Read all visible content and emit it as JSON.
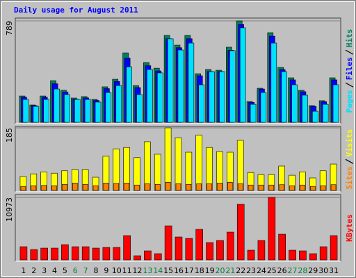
{
  "chart_data": [
    {
      "type": "bar",
      "title": "Daily usage for August 2011",
      "ylim": [
        0,
        789
      ],
      "yticks": [
        789
      ],
      "series": [
        {
          "name": "Hits",
          "color": "#00805c",
          "values": [
            205,
            135,
            205,
            324,
            249,
            189,
            200,
            178,
            276,
            335,
            540,
            286,
            465,
            421,
            676,
            600,
            676,
            378,
            411,
            405,
            584,
            789,
            162,
            265,
            697,
            427,
            346,
            249,
            130,
            168,
            346
          ]
        },
        {
          "name": "Files",
          "color": "#0000ff",
          "values": [
            195,
            130,
            195,
            300,
            236,
            180,
            190,
            170,
            262,
            318,
            500,
            270,
            440,
            400,
            650,
            580,
            650,
            362,
            395,
            395,
            560,
            760,
            155,
            259,
            670,
            410,
            330,
            238,
            124,
            160,
            330
          ]
        },
        {
          "name": "Pages",
          "color": "#00e0ff",
          "values": [
            178,
            124,
            178,
            259,
            216,
            178,
            178,
            157,
            232,
            286,
            432,
            216,
            411,
            384,
            649,
            562,
            616,
            292,
            394,
            394,
            557,
            735,
            140,
            232,
            616,
            394,
            292,
            211,
            86,
            140,
            292
          ]
        }
      ]
    },
    {
      "type": "bar",
      "ylim": [
        0,
        185
      ],
      "yticks": [
        185
      ],
      "series": [
        {
          "name": "Visits",
          "color": "#ffff00",
          "values": [
            41,
            49,
            55,
            51,
            58,
            62,
            62,
            39,
            101,
            123,
            127,
            97,
            144,
            107,
            185,
            156,
            113,
            164,
            127,
            115,
            113,
            148,
            53,
            47,
            47,
            72,
            45,
            55,
            37,
            58,
            78
          ]
        },
        {
          "name": "Sites",
          "color": "#ff8000",
          "values": [
            12,
            14,
            15,
            14,
            18,
            22,
            18,
            14,
            22,
            21,
            22,
            16,
            20,
            18,
            24,
            20,
            18,
            20,
            20,
            22,
            24,
            20,
            16,
            16,
            16,
            17,
            14,
            16,
            12,
            14,
            17
          ]
        }
      ]
    },
    {
      "type": "bar",
      "ylim": [
        0,
        10973
      ],
      "yticks": [
        10973
      ],
      "series": [
        {
          "name": "KBytes",
          "color": "#ff0000",
          "values": [
            2317,
            1829,
            2073,
            2073,
            2682,
            2317,
            2317,
            2073,
            2195,
            2195,
            4267,
            732,
            1585,
            1097,
            5974,
            4024,
            3780,
            5364,
            3048,
            3414,
            4877,
            9754,
            1707,
            3414,
            10973,
            4511,
            1707,
            1585,
            1097,
            2317,
            4267
          ]
        }
      ],
      "categories": [
        "1",
        "2",
        "3",
        "4",
        "5",
        "6",
        "7",
        "8",
        "9",
        "10",
        "11",
        "12",
        "13",
        "14",
        "15",
        "16",
        "17",
        "18",
        "19",
        "20",
        "21",
        "22",
        "23",
        "24",
        "25",
        "26",
        "27",
        "28",
        "29",
        "30",
        "31"
      ],
      "highlight_categories": [
        "6",
        "7",
        "13",
        "14",
        "20",
        "21",
        "27",
        "28"
      ],
      "highlight_color": "#008040"
    }
  ]
}
